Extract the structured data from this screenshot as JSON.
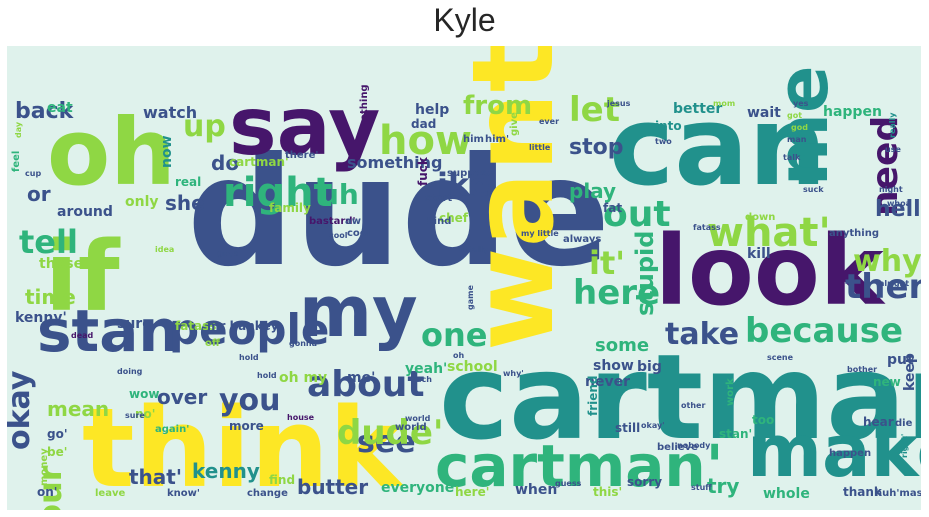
{
  "title": "Kyle",
  "palette": {
    "background": "#dff2ec",
    "purple": "#46166b",
    "blue": "#3b528b",
    "teal": "#21918c",
    "green": "#2fb47c",
    "lime": "#8fd744",
    "yellow": "#fde725"
  },
  "words": [
    "dude",
    "cartman",
    "can",
    "want",
    "look",
    "say",
    "think",
    "if",
    "oh",
    "me",
    "make",
    "my",
    "cartman'",
    "stan",
    "because",
    "people",
    "right",
    "how",
    "let",
    "need",
    "then",
    "take",
    "about",
    "here",
    "out",
    "what'",
    "why",
    "you",
    "up",
    "see",
    "dude'",
    "one",
    "ike",
    "tell",
    "it'",
    "hell",
    "our",
    "okay",
    "uh",
    "stupid",
    "back",
    "from",
    "stop",
    "play",
    "she",
    "do",
    "or",
    "time",
    "mean",
    "over",
    "butter",
    "kenny",
    "that'",
    "try",
    "some",
    "show",
    "never",
    "put",
    "keep",
    "friend",
    "watch",
    "help",
    "now",
    "into",
    "wait",
    "better",
    "happen",
    "something",
    "around",
    "only",
    "family",
    "chef",
    "kill",
    "real",
    "cartman'",
    "those",
    "sure",
    "kenny'",
    "fatass",
    "mr hankey",
    "school",
    "yeah'",
    "big",
    "oh my",
    "me'",
    "wow",
    "no'",
    "again'",
    "more",
    "go'",
    "be'",
    "on'",
    "leave",
    "know'",
    "change",
    "find",
    "everyone",
    "here'",
    "when",
    "this'",
    "sorry",
    "whole",
    "thank",
    "huh'mast",
    "too",
    "stan'",
    "hear",
    "die",
    "new",
    "believe",
    "still",
    "work",
    "world",
    "money",
    "cool",
    "nothing",
    "fuck",
    "start",
    "suppose",
    "kind",
    "always",
    "fat",
    "anything",
    "eat",
    "dad",
    "him'",
    "give",
    "him",
    "there'",
    "jesus",
    "yes",
    "got",
    "ever",
    "two",
    "alright",
    "bastard'",
    "aw",
    "cool",
    "totally",
    "game",
    "mom",
    "god",
    "man",
    "little",
    "feel",
    "day",
    "cup",
    "off",
    "hold",
    "world",
    "guess",
    "down",
    "idea",
    "fatass",
    "stuff",
    "happen",
    "night",
    "whoa",
    "scene",
    "talk",
    "suck",
    "house",
    "really",
    "doing",
    "bother",
    "gonna",
    "my little",
    "nobody",
    "other",
    "okay'",
    "dead",
    "such",
    "hold",
    "right'",
    "use",
    "oh",
    "why'",
    "sure",
    "guys"
  ]
}
